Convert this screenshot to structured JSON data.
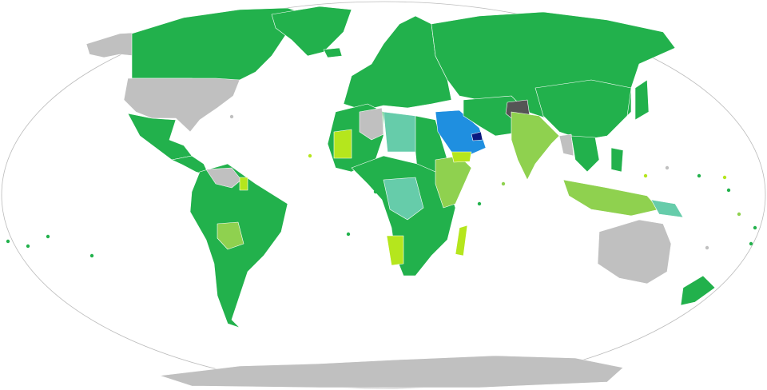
{
  "map": {
    "projection": "robinson",
    "colors": {
      "home_country": "#0a1a80",
      "gcc_freedom_of_movement": "#1f8fe0",
      "visa_free": "#22b14c",
      "visa_on_arrival": "#8fd14f",
      "evisa": "#b5e61d",
      "visa_on_arrival_or_evisa": "#66ccaa",
      "visa_required": "#c0c0c0",
      "travel_banned": "#555555",
      "ocean": "#ffffff"
    }
  }
}
